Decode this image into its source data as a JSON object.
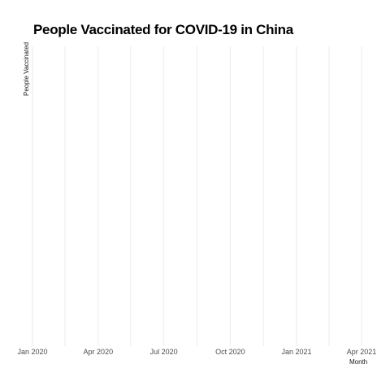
{
  "chart_data": {
    "type": "line",
    "title": "People Vaccinated for COVID-19 in China",
    "xlabel": "Month",
    "ylabel": "People Vaccinated",
    "x_ticks": [
      "Jan 2020",
      "Apr 2020",
      "Jul 2020",
      "Oct 2020",
      "Jan 2021",
      "Apr 2021"
    ],
    "x_tick_dates": [
      "2020-01-01",
      "2020-04-01",
      "2020-07-01",
      "2020-10-01",
      "2021-01-01",
      "2021-04-01"
    ],
    "x_minor_dates": [
      "2020-02-15",
      "2020-05-16",
      "2020-08-16",
      "2020-11-16",
      "2021-02-15"
    ],
    "xlim": [
      "2020-01-01",
      "2021-04-01"
    ],
    "series": [],
    "grid": true,
    "grid_color": "#ebebeb",
    "background": "#ffffff"
  }
}
